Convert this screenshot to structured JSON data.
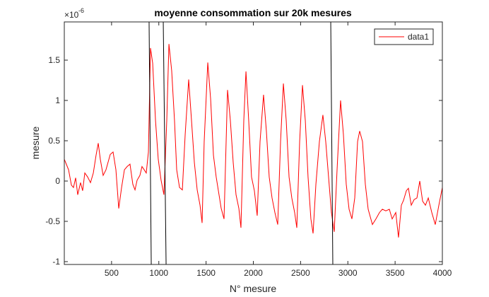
{
  "chart_data": {
    "type": "line",
    "title": "moyenne consommation sur 20k mesures",
    "x_label": "N° mesure",
    "y_label": "mesure",
    "y_multiplier": {
      "base": "×10",
      "exponent": "-6"
    },
    "xlim": [
      0,
      4000
    ],
    "xticks": [
      500,
      1000,
      1500,
      2000,
      2500,
      3000,
      3500,
      4000
    ],
    "ylim": [
      -1.035,
      1.974
    ],
    "yticks": [
      -1,
      -0.5,
      0,
      0.5,
      1,
      1.5
    ],
    "legend_position": "top-right",
    "series": [
      {
        "name": "data1",
        "color": "#ff0000",
        "x": [
          0,
          45,
          75,
          97,
          120,
          142,
          172,
          194,
          217,
          247,
          277,
          307,
          336,
          359,
          381,
          411,
          441,
          486,
          516,
          546,
          576,
          606,
          636,
          665,
          695,
          725,
          748,
          770,
          800,
          822,
          845,
          867,
          890,
          912,
          935,
          965,
          994,
          1024,
          1054,
          1084,
          1107,
          1136,
          1166,
          1189,
          1219,
          1249,
          1279,
          1316,
          1346,
          1376,
          1406,
          1436,
          1458,
          1480,
          1518,
          1548,
          1578,
          1607,
          1637,
          1660,
          1690,
          1727,
          1757,
          1787,
          1817,
          1847,
          1869,
          1899,
          1922,
          1951,
          1981,
          2011,
          2041,
          2071,
          2108,
          2138,
          2168,
          2198,
          2228,
          2258,
          2288,
          2318,
          2348,
          2378,
          2407,
          2437,
          2460,
          2490,
          2520,
          2550,
          2579,
          2609,
          2632,
          2662,
          2699,
          2736,
          2766,
          2796,
          2826,
          2856,
          2886,
          2923,
          2953,
          2983,
          3013,
          3043,
          3073,
          3103,
          3125,
          3155,
          3185,
          3215,
          3260,
          3297,
          3335,
          3365,
          3402,
          3439,
          3469,
          3507,
          3536,
          3566,
          3589,
          3619,
          3641,
          3671,
          3701,
          3731,
          3761,
          3791,
          3821,
          3851,
          3888,
          3925,
          3963,
          4000
        ],
        "values": [
          0.27,
          0.14,
          -0.05,
          -0.08,
          0.04,
          -0.17,
          -0.02,
          -0.12,
          0.1,
          0.05,
          -0.02,
          0.1,
          0.32,
          0.47,
          0.27,
          0.07,
          0.14,
          0.33,
          0.36,
          0.14,
          -0.34,
          -0.08,
          0.14,
          0.18,
          0.21,
          -0.04,
          -0.11,
          0.01,
          0.07,
          0.18,
          0.14,
          0.1,
          0.36,
          1.65,
          1.46,
          0.75,
          0.27,
          0.01,
          -0.17,
          0.75,
          1.7,
          1.37,
          0.75,
          0.14,
          -0.08,
          -0.11,
          0.58,
          1.26,
          0.75,
          0.23,
          -0.11,
          -0.3,
          -0.52,
          0.49,
          1.47,
          1.02,
          0.32,
          0.05,
          -0.17,
          -0.34,
          -0.47,
          1.13,
          0.75,
          0.23,
          -0.17,
          -0.34,
          -0.58,
          0.75,
          1.36,
          0.75,
          0.05,
          -0.12,
          -0.43,
          0.49,
          1.07,
          0.62,
          0.05,
          -0.21,
          -0.39,
          -0.54,
          0.49,
          1.21,
          0.75,
          0.05,
          -0.21,
          -0.39,
          -0.58,
          0.49,
          1.19,
          0.75,
          0.05,
          -0.47,
          -0.65,
          -0.04,
          0.49,
          0.82,
          0.49,
          0.05,
          -0.39,
          -0.63,
          0.14,
          1.0,
          0.58,
          -0.04,
          -0.35,
          -0.47,
          -0.21,
          0.49,
          0.62,
          0.49,
          -0.04,
          -0.35,
          -0.54,
          -0.47,
          -0.39,
          -0.35,
          -0.37,
          -0.35,
          -0.47,
          -0.39,
          -0.7,
          -0.3,
          -0.24,
          -0.12,
          -0.09,
          -0.3,
          -0.23,
          -0.21,
          0,
          -0.25,
          -0.3,
          -0.21,
          -0.39,
          -0.54,
          -0.3,
          -0.08
        ]
      }
    ],
    "vlines": {
      "color": "#000000",
      "x_top": [
        897,
        1047,
        2819
      ],
      "x_bottom": [
        920,
        1077,
        2841
      ]
    }
  }
}
